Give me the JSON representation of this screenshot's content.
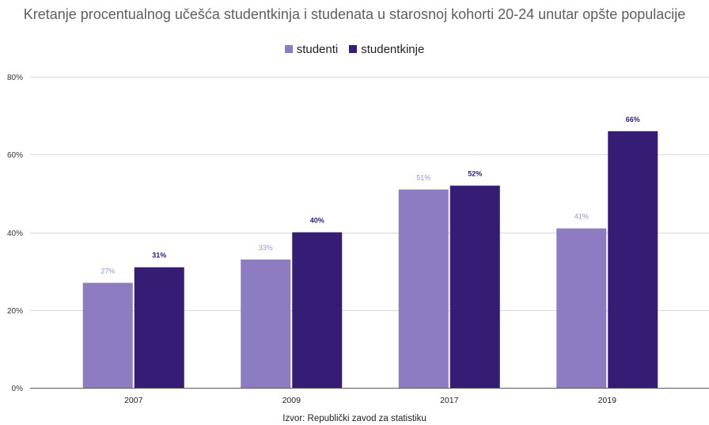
{
  "chart_data": {
    "type": "bar",
    "title": "Kretanje procentualnog učešća studentkinja i studenata u starosnoj kohorti 20-24 unutar opšte populacije",
    "categories": [
      "2007",
      "2009",
      "2017",
      "2019"
    ],
    "series": [
      {
        "name": "studenti",
        "values": [
          27,
          33,
          51,
          41
        ],
        "labels": [
          "27%",
          "33%",
          "51%",
          "41%"
        ],
        "color": "#8e7cc3",
        "label_color": "#9d90c9"
      },
      {
        "name": "studentkinje",
        "values": [
          31,
          40,
          52,
          66
        ],
        "labels": [
          "31%",
          "40%",
          "52%",
          "66%"
        ],
        "color": "#351c75",
        "label_color": "#351c75"
      }
    ],
    "y_axis": {
      "min": 0,
      "max": 80,
      "ticks": [
        0,
        20,
        40,
        60,
        80
      ],
      "tick_labels": [
        "0%",
        "20%",
        "40%",
        "60%",
        "80%"
      ]
    },
    "grid": true,
    "legend": "top",
    "source": "Izvor: Republički zavod za statistiku"
  }
}
